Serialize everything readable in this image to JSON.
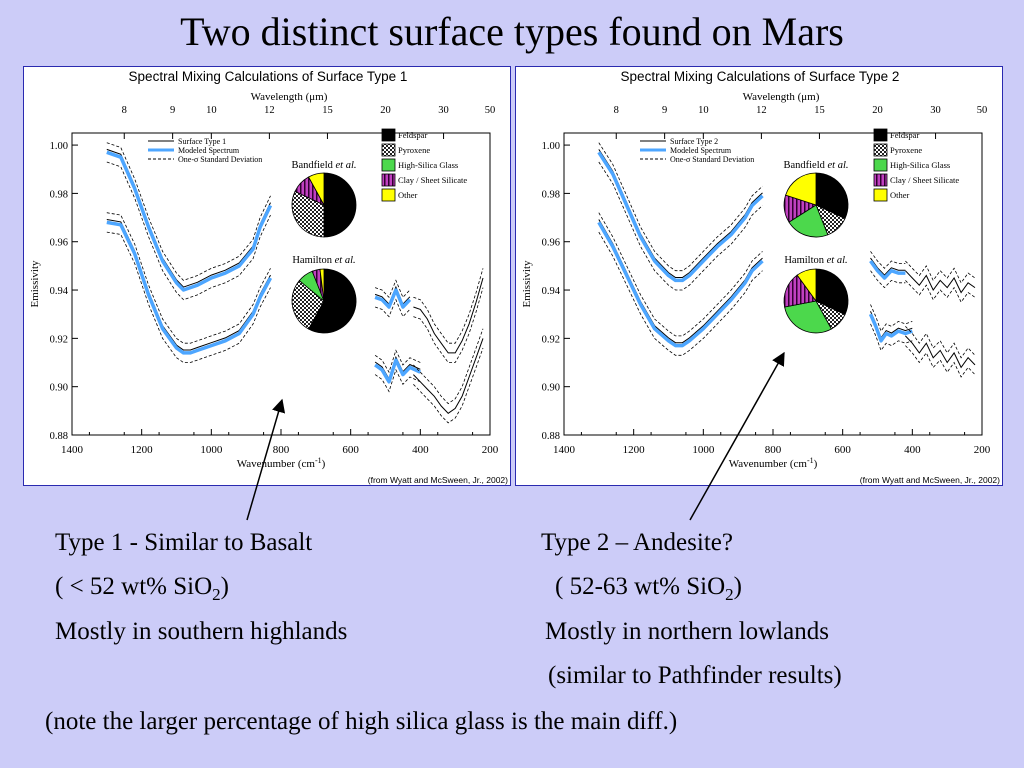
{
  "slide": {
    "title": "Two distinct surface types found on Mars",
    "type1": {
      "heading": "Type 1 - Similar to Basalt",
      "silica_open": "( < 52 wt% SiO",
      "silica_sub": "2",
      "silica_close": ")",
      "location": "Mostly in southern highlands"
    },
    "type2": {
      "heading": "Type 2 – Andesite?",
      "silica_open": "( 52-63 wt% SiO",
      "silica_sub": "2",
      "silica_close": ")",
      "location": "Mostly in northern lowlands",
      "note": "(similar to Pathfinder results)"
    },
    "footnote": "(note the larger percentage of high silica glass is the main diff.)"
  },
  "legend_lines": [
    "Modeled Spectrum",
    "One-σ Standard Deviation"
  ],
  "mineral_legend": [
    {
      "label": "Feldspar",
      "color": "#000000",
      "pattern": "solid"
    },
    {
      "label": "Pyroxene",
      "color": "#555555",
      "pattern": "checker"
    },
    {
      "label": "High-Silica Glass",
      "color": "#4cd84c",
      "pattern": "solid"
    },
    {
      "label": "Clay / Sheet Silicate",
      "color": "#c040c0",
      "pattern": "stripes"
    },
    {
      "label": "Other",
      "color": "#ffff00",
      "pattern": "solid"
    }
  ],
  "colors": {
    "modeled": "#4da6ff",
    "measured": "#000000",
    "panel_border": "#2a2ab0",
    "background": "#ccccf8"
  },
  "chart_data": [
    {
      "type": "line",
      "title": "Spectral Mixing Calculations of Surface Type 1",
      "top_axis_label": "Wavelength (μm)",
      "top_ticks": [
        "8",
        "9",
        "10",
        "12",
        "15",
        "20",
        "30",
        "50"
      ],
      "xlabel": "Wavenumber (cm",
      "xlabel_sup": "-1",
      "xlabel_close": ")",
      "ylabel": "Emissivity",
      "xlim": [
        1400,
        200
      ],
      "ylim": [
        0.88,
        1.005
      ],
      "x_ticks": [
        "1400",
        "1200",
        "1000",
        "800",
        "600",
        "400",
        "200"
      ],
      "y_ticks": [
        "0.88",
        "0.90",
        "0.92",
        "0.94",
        "0.96",
        "0.98",
        "1.00"
      ],
      "series_legend": "Surface Type 1",
      "credit": "(from Wyatt and McSween, Jr., 2002)",
      "series": [
        {
          "name": "upper spectrum",
          "segments": [
            {
              "x": [
                1300,
                1260,
                1220,
                1180,
                1140,
                1100,
                1080,
                1060,
                1040,
                1000,
                960,
                920,
                880,
                860,
                830
              ],
              "y": [
                0.997,
                0.995,
                0.982,
                0.966,
                0.952,
                0.943,
                0.94,
                0.941,
                0.942,
                0.945,
                0.947,
                0.95,
                0.957,
                0.966,
                0.975
              ]
            },
            {
              "x": [
                530,
                510,
                490,
                470,
                450,
                430
              ],
              "y": [
                0.937,
                0.936,
                0.933,
                0.94,
                0.933,
                0.936
              ]
            }
          ]
        },
        {
          "name": "lower spectrum",
          "segments": [
            {
              "x": [
                1300,
                1260,
                1220,
                1180,
                1140,
                1100,
                1080,
                1060,
                1040,
                1000,
                960,
                920,
                880,
                860,
                830
              ],
              "y": [
                0.968,
                0.967,
                0.955,
                0.938,
                0.924,
                0.916,
                0.914,
                0.914,
                0.915,
                0.917,
                0.919,
                0.922,
                0.93,
                0.937,
                0.945
              ]
            },
            {
              "x": [
                530,
                510,
                490,
                470,
                450,
                430,
                400
              ],
              "y": [
                0.909,
                0.907,
                0.902,
                0.911,
                0.905,
                0.908,
                0.906
              ]
            }
          ]
        }
      ],
      "noisy_tail": [
        {
          "x": [
            420,
            400,
            380,
            360,
            340,
            320,
            300,
            280,
            260,
            240,
            220
          ],
          "y": [
            0.933,
            0.932,
            0.928,
            0.922,
            0.918,
            0.914,
            0.914,
            0.919,
            0.926,
            0.935,
            0.945
          ]
        },
        {
          "x": [
            420,
            400,
            380,
            360,
            340,
            320,
            300,
            280,
            260,
            240,
            220
          ],
          "y": [
            0.905,
            0.902,
            0.899,
            0.896,
            0.892,
            0.889,
            0.891,
            0.896,
            0.904,
            0.912,
            0.92
          ]
        }
      ],
      "pies": [
        {
          "title": "Bandfield",
          "title_italic": "et al.",
          "slices": [
            {
              "label": "Feldspar",
              "value": 50
            },
            {
              "label": "Pyroxene",
              "value": 32
            },
            {
              "label": "High-Silica Glass",
              "value": 0
            },
            {
              "label": "Clay / Sheet Silicate",
              "value": 10
            },
            {
              "label": "Other",
              "value": 8
            }
          ]
        },
        {
          "title": "Hamilton",
          "title_italic": "et al.",
          "slices": [
            {
              "label": "Feldspar",
              "value": 58
            },
            {
              "label": "Pyroxene",
              "value": 28
            },
            {
              "label": "High-Silica Glass",
              "value": 8
            },
            {
              "label": "Clay / Sheet Silicate",
              "value": 4
            },
            {
              "label": "Other",
              "value": 2
            }
          ]
        }
      ]
    },
    {
      "type": "line",
      "title": "Spectral Mixing Calculations of Surface Type 2",
      "top_axis_label": "Wavelength (μm)",
      "top_ticks": [
        "8",
        "9",
        "10",
        "12",
        "15",
        "20",
        "30",
        "50"
      ],
      "xlabel": "Wavenumber (cm",
      "xlabel_sup": "-1",
      "xlabel_close": ")",
      "ylabel": "Emissivity",
      "xlim": [
        1400,
        200
      ],
      "ylim": [
        0.88,
        1.005
      ],
      "x_ticks": [
        "1400",
        "1200",
        "1000",
        "800",
        "600",
        "400",
        "200"
      ],
      "y_ticks": [
        "0.88",
        "0.90",
        "0.92",
        "0.94",
        "0.96",
        "0.98",
        "1.00"
      ],
      "series_legend": "Surface Type 2",
      "credit": "(from Wyatt and McSween, Jr., 2002)",
      "series": [
        {
          "name": "upper spectrum",
          "segments": [
            {
              "x": [
                1300,
                1260,
                1220,
                1180,
                1140,
                1100,
                1080,
                1060,
                1040,
                1000,
                960,
                920,
                880,
                860,
                830
              ],
              "y": [
                0.997,
                0.988,
                0.975,
                0.962,
                0.952,
                0.946,
                0.944,
                0.944,
                0.946,
                0.952,
                0.958,
                0.963,
                0.97,
                0.975,
                0.979
              ]
            },
            {
              "x": [
                520,
                500,
                480,
                460,
                440,
                420
              ],
              "y": [
                0.952,
                0.948,
                0.945,
                0.948,
                0.947,
                0.947
              ]
            }
          ]
        },
        {
          "name": "lower spectrum",
          "segments": [
            {
              "x": [
                1300,
                1260,
                1220,
                1180,
                1140,
                1100,
                1080,
                1060,
                1040,
                1000,
                960,
                920,
                880,
                860,
                830
              ],
              "y": [
                0.968,
                0.958,
                0.946,
                0.934,
                0.924,
                0.919,
                0.917,
                0.917,
                0.919,
                0.924,
                0.93,
                0.936,
                0.943,
                0.948,
                0.952
              ]
            },
            {
              "x": [
                520,
                505,
                490,
                475,
                460,
                440,
                420,
                400
              ],
              "y": [
                0.93,
                0.925,
                0.919,
                0.922,
                0.921,
                0.923,
                0.922,
                0.923
              ]
            }
          ]
        }
      ],
      "noisy_tail": [
        {
          "x": [
            420,
            400,
            380,
            360,
            340,
            320,
            300,
            280,
            260,
            240,
            220
          ],
          "y": [
            0.948,
            0.945,
            0.942,
            0.946,
            0.94,
            0.944,
            0.941,
            0.945,
            0.939,
            0.943,
            0.941
          ]
        },
        {
          "x": [
            420,
            400,
            380,
            360,
            340,
            320,
            300,
            280,
            260,
            240,
            220
          ],
          "y": [
            0.921,
            0.918,
            0.914,
            0.918,
            0.912,
            0.915,
            0.91,
            0.914,
            0.908,
            0.912,
            0.909
          ]
        }
      ],
      "pies": [
        {
          "title": "Bandfield",
          "title_italic": "et al.",
          "slices": [
            {
              "label": "Feldspar",
              "value": 32
            },
            {
              "label": "Pyroxene",
              "value": 12
            },
            {
              "label": "High-Silica Glass",
              "value": 22
            },
            {
              "label": "Clay / Sheet Silicate",
              "value": 14
            },
            {
              "label": "Other",
              "value": 20
            }
          ]
        },
        {
          "title": "Hamilton",
          "title_italic": "et al.",
          "slices": [
            {
              "label": "Feldspar",
              "value": 32
            },
            {
              "label": "Pyroxene",
              "value": 10
            },
            {
              "label": "High-Silica Glass",
              "value": 30
            },
            {
              "label": "Clay / Sheet Silicate",
              "value": 18
            },
            {
              "label": "Other",
              "value": 10
            }
          ]
        }
      ]
    }
  ]
}
